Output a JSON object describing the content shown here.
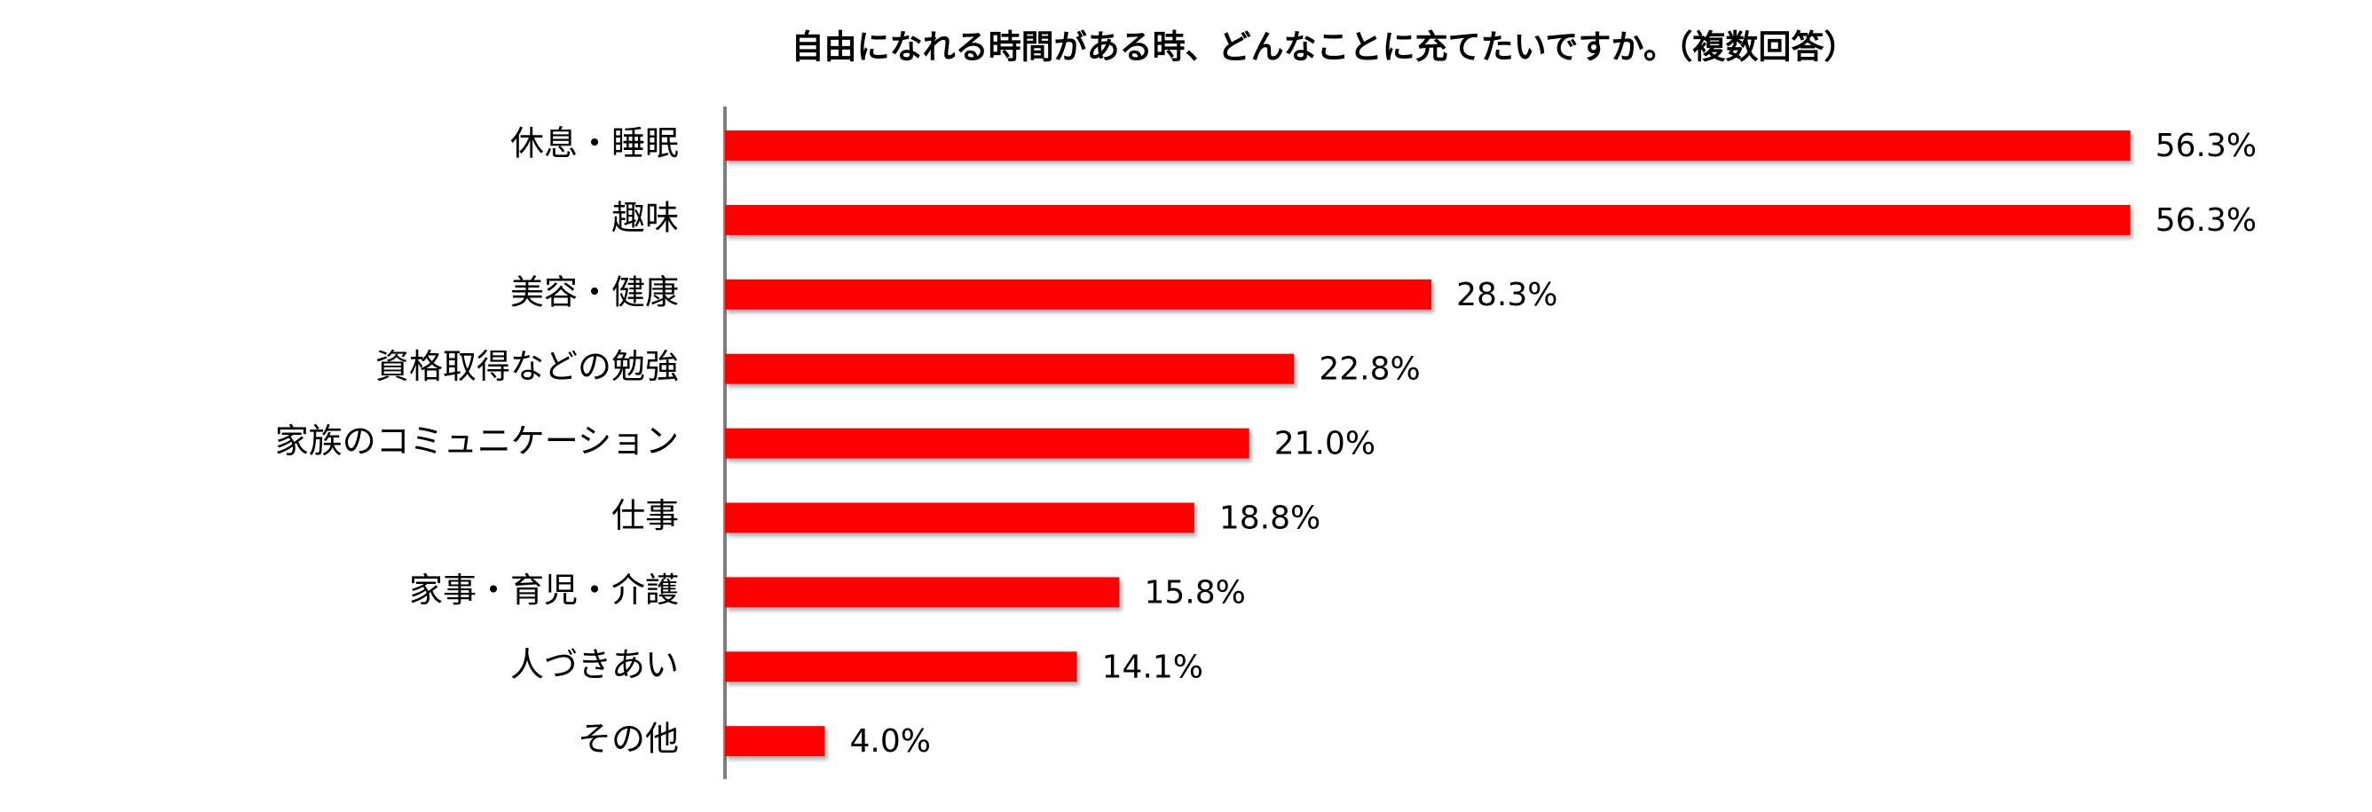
{
  "chart_data": {
    "type": "bar",
    "orientation": "horizontal",
    "title": "自由になれる時間がある時、どんなことに充てたいですか。（複数回答）",
    "categories": [
      "休息・睡眠",
      "趣味",
      "美容・健康",
      "資格取得などの勉強",
      "家族のコミュニケーション",
      "仕事",
      "家事・育児・介護",
      "人づきあい",
      "その他"
    ],
    "values": [
      56.3,
      56.3,
      28.3,
      22.8,
      21.0,
      18.8,
      15.8,
      14.1,
      4.0
    ],
    "value_labels": [
      "56.3%",
      "56.3%",
      "28.3%",
      "22.8%",
      "21.0%",
      "18.8%",
      "15.8%",
      "14.1%",
      "4.0%"
    ],
    "color": "#ff0000"
  }
}
